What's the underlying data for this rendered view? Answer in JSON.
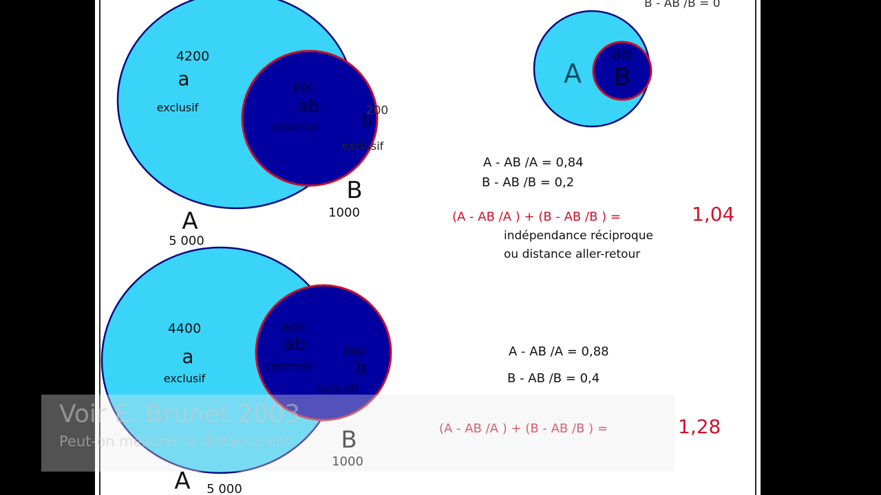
{
  "colors": {
    "set_a": "#3ad4f8",
    "set_b": "#0000a0",
    "b_stroke": "#c8102e",
    "a_stroke": "#0a0a80",
    "red_text": "#d0102a"
  },
  "top_right": {
    "partial_formula": "B - AB /B = 0",
    "small_a": "A",
    "small_ab": "ab",
    "small_b": "B"
  },
  "diagram1": {
    "a_count": "4200",
    "a_letter": "a",
    "a_label": "exclusif",
    "ab_count": "800",
    "ab_letter": "ab",
    "ab_label": "commun",
    "b_count": "200",
    "b_letter": "b",
    "b_label": "exclusif",
    "A": "A",
    "A_total": "5 000",
    "B": "B",
    "B_total": "1000",
    "f1": "A - AB /A = 0,84",
    "f2": "B - AB /B = 0,2",
    "sum": "(A - AB /A ) + (B - AB /B ) =",
    "result": "1,04",
    "note1": "indépendance réciproque",
    "note2": "ou distance aller-retour"
  },
  "diagram2": {
    "a_count": "4400",
    "a_letter": "a",
    "a_label": "exclusif",
    "ab_count": "600",
    "ab_letter": "ab",
    "ab_label": "commun",
    "b_count": "400",
    "b_letter": "b",
    "b_label": "exclusif",
    "A": "A",
    "A_total": "5 000",
    "B": "B",
    "B_total": "1000",
    "f1": "A - AB /A = 0,88",
    "f2": "B - AB /B = 0,4",
    "sum": "(A - AB /A ) + (B - AB /B ) =",
    "result": "1,28"
  },
  "caption": {
    "title": "Voir E. Brunet 2003",
    "subtitle": "Peut-on mesurer la distance ent"
  }
}
